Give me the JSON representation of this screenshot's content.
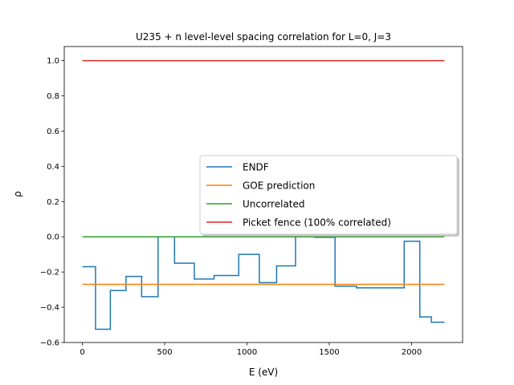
{
  "chart_data": {
    "type": "line",
    "title": "U235 + n  level-level spacing correlation for L=0, J=3",
    "xlabel": "E (eV)",
    "ylabel": "ρ",
    "xlim": [
      -110,
      2310
    ],
    "ylim": [
      -0.6,
      1.08
    ],
    "xticks": [
      0,
      500,
      1000,
      1500,
      2000
    ],
    "yticks": [
      -0.6,
      -0.4,
      -0.2,
      0.0,
      0.2,
      0.4,
      0.6,
      0.8,
      1.0
    ],
    "xtick_labels": [
      "0",
      "500",
      "1000",
      "1500",
      "2000"
    ],
    "ytick_labels": [
      "−0.6",
      "−0.4",
      "−0.2",
      "0.0",
      "0.2",
      "0.4",
      "0.6",
      "0.8",
      "1.0"
    ],
    "grid": false,
    "legend_position": "center-right",
    "series": [
      {
        "name": "ENDF",
        "style": "step",
        "color": "#1f77b4",
        "x": [
          0,
          80,
          80,
          170,
          170,
          265,
          265,
          360,
          360,
          460,
          460,
          560,
          560,
          680,
          680,
          800,
          800,
          950,
          950,
          1075,
          1075,
          1180,
          1180,
          1295,
          1295,
          1410,
          1410,
          1535,
          1535,
          1665,
          1665,
          1810,
          1810,
          1955,
          1955,
          2050,
          2050,
          2120,
          2120,
          2200
        ],
        "y": [
          -0.17,
          -0.17,
          -0.525,
          -0.525,
          -0.305,
          -0.305,
          -0.225,
          -0.225,
          -0.34,
          -0.34,
          0.0,
          0.0,
          -0.15,
          -0.15,
          -0.24,
          -0.24,
          -0.22,
          -0.22,
          -0.1,
          -0.1,
          -0.26,
          -0.26,
          -0.165,
          -0.165,
          0.0,
          0.0,
          -0.003,
          -0.003,
          -0.28,
          -0.28,
          -0.29,
          -0.29,
          -0.29,
          -0.29,
          -0.025,
          -0.025,
          -0.455,
          -0.455,
          -0.485,
          -0.485
        ]
      },
      {
        "name": "GOE prediction",
        "style": "line",
        "color": "#ff7f0e",
        "x": [
          0,
          2200
        ],
        "y": [
          -0.27,
          -0.27
        ]
      },
      {
        "name": "Uncorrelated",
        "style": "line",
        "color": "#2ca02c",
        "x": [
          0,
          2200
        ],
        "y": [
          0.0,
          0.0
        ]
      },
      {
        "name": "Picket fence (100% correlated)",
        "style": "line",
        "color": "#d62728",
        "x": [
          0,
          2200
        ],
        "y": [
          1.0,
          1.0
        ]
      }
    ]
  }
}
